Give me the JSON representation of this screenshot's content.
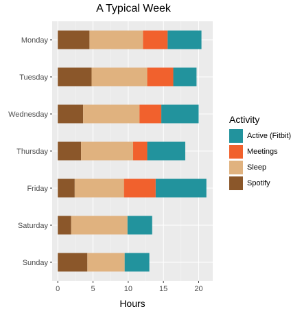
{
  "chart_data": {
    "type": "bar",
    "orientation": "horizontal",
    "stacked": true,
    "title": "A Typical Week",
    "xlabel": "Hours",
    "ylabel": "",
    "xlim": [
      -0.8,
      22
    ],
    "xticks": [
      0,
      5,
      10,
      15,
      20
    ],
    "categories": [
      "Monday",
      "Tuesday",
      "Wednesday",
      "Thursday",
      "Friday",
      "Saturday",
      "Sunday"
    ],
    "series": [
      {
        "name": "Spotify",
        "color": "#8B572A",
        "values": [
          4.5,
          4.8,
          3.6,
          3.3,
          2.4,
          1.9,
          4.2
        ]
      },
      {
        "name": "Sleep",
        "color": "#E0B27F",
        "values": [
          7.6,
          7.9,
          8.0,
          7.4,
          7.0,
          8.0,
          5.3
        ]
      },
      {
        "name": "Meetings",
        "color": "#F1612D",
        "values": [
          3.5,
          3.7,
          3.1,
          2.0,
          4.5,
          0,
          0
        ]
      },
      {
        "name": "Active (Fitbit)",
        "color": "#22939D",
        "values": [
          4.8,
          3.3,
          5.3,
          5.4,
          7.2,
          3.5,
          3.5
        ]
      }
    ],
    "legend": {
      "title": "Activity",
      "position": "right",
      "order": [
        "Active (Fitbit)",
        "Meetings",
        "Sleep",
        "Spotify"
      ]
    },
    "grid": true
  }
}
